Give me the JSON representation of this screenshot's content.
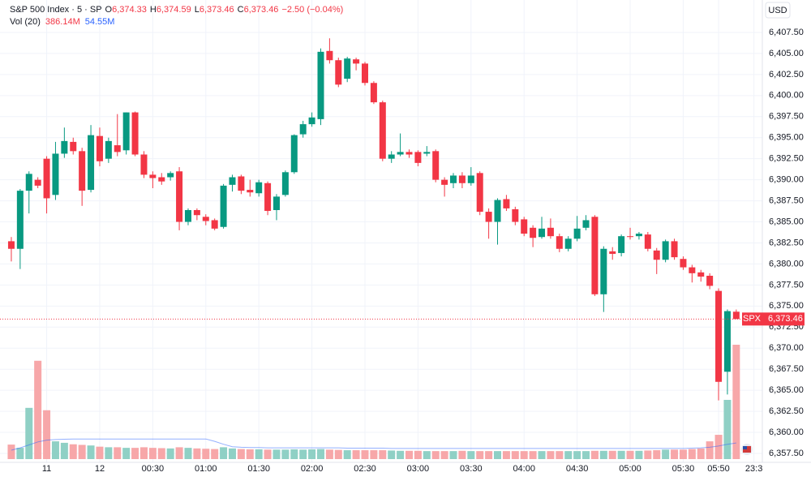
{
  "chart_data": {
    "type": "candlestick",
    "title": "S&P 500 Index · 5 · SP",
    "header": {
      "open_label": "O",
      "open": "6,374.33",
      "high_label": "H",
      "high": "6,374.59",
      "low_label": "L",
      "low": "6,373.46",
      "close_label": "C",
      "close": "6,373.46",
      "change": "−2.50 (−0.04%)",
      "volume_label": "Vol (20)",
      "volume": "386.14M",
      "volume_ma": "54.55M"
    },
    "currency": "USD",
    "last_price": {
      "symbol": "SPX",
      "label": "6,373.46"
    },
    "up_color": "#089981",
    "down_color": "#f23645",
    "volume_up_color": "#8fd0c5",
    "volume_down_color": "#f7a7a9",
    "volume_ma_color": "#2962ff",
    "grid": true,
    "xlim": [
      -1.28,
      84.95
    ],
    "xticks": [
      {
        "value": 4,
        "label": "11"
      },
      {
        "value": 10,
        "label": "12"
      },
      {
        "value": 16,
        "label": "00:30"
      },
      {
        "value": 22,
        "label": "01:00"
      },
      {
        "value": 28,
        "label": "01:30"
      },
      {
        "value": 34,
        "label": "02:00"
      },
      {
        "value": 40,
        "label": "02:30"
      },
      {
        "value": 46,
        "label": "03:00"
      },
      {
        "value": 52,
        "label": "03:30"
      },
      {
        "value": 58,
        "label": "04:00"
      },
      {
        "value": 64,
        "label": "04:30"
      },
      {
        "value": 70,
        "label": "05:00"
      },
      {
        "value": 76,
        "label": "05:30"
      },
      {
        "value": 80,
        "label": "05:50"
      },
      {
        "value": 84,
        "label": "23:3"
      }
    ],
    "ylim": [
      6356.44,
      6411.35
    ],
    "yticks": [
      {
        "value": 6357.5,
        "label": "6,357.50"
      },
      {
        "value": 6360,
        "label": "6,360.00"
      },
      {
        "value": 6362.5,
        "label": "6,362.50"
      },
      {
        "value": 6365,
        "label": "6,365.00"
      },
      {
        "value": 6367.5,
        "label": "6,367.50"
      },
      {
        "value": 6370,
        "label": "6,370.00"
      },
      {
        "value": 6372.5,
        "label": "6,372.50"
      },
      {
        "value": 6375,
        "label": "6,375.00"
      },
      {
        "value": 6377.5,
        "label": "6,377.50"
      },
      {
        "value": 6380,
        "label": "6,380.00"
      },
      {
        "value": 6382.5,
        "label": "6,382.50"
      },
      {
        "value": 6385,
        "label": "6,385.00"
      },
      {
        "value": 6387.5,
        "label": "6,387.50"
      },
      {
        "value": 6390,
        "label": "6,390.00"
      },
      {
        "value": 6392.5,
        "label": "6,392.50"
      },
      {
        "value": 6395,
        "label": "6,395.00"
      },
      {
        "value": 6397.5,
        "label": "6,397.50"
      },
      {
        "value": 6400,
        "label": "6,400.00"
      },
      {
        "value": 6402.5,
        "label": "6,402.50"
      },
      {
        "value": 6405,
        "label": "6,405.00"
      },
      {
        "value": 6407.5,
        "label": "6,407.50"
      }
    ],
    "open": [
      6382.7,
      6381.8,
      6388.7,
      6390.0,
      6392.5,
      6388.2,
      6393.1,
      6394.5,
      6393.4,
      6388.8,
      6395.2,
      6392.5,
      6394.1,
      6393.5,
      6398.0,
      6393.0,
      6390.6,
      6390.3,
      6390.3,
      6391.0,
      6385.0,
      6386.4,
      6385.6,
      6385.2,
      6384.4,
      6389.4,
      6390.4,
      6388.8,
      6388.4,
      6389.6,
      6386.4,
      6388.2,
      6390.9,
      6395.4,
      6396.6,
      6397.2,
      6405.3,
      6404.2,
      6402.0,
      6404.3,
      6403.8,
      6401.5,
      6399.2,
      6392.5,
      6393.0,
      6393.3,
      6393.3,
      6393.1,
      6393.4,
      6390.0,
      6389.6,
      6390.5,
      6389.6,
      6390.8,
      6386.2,
      6385.0,
      6387.7,
      6386.5,
      6385.3,
      6384.3,
      6383.2,
      6384.3,
      6383.3,
      6381.8,
      6383.0,
      6384.3,
      6385.6,
      6376.4,
      6381.5,
      6381.3,
      6383.3,
      6383.3,
      6383.5,
      6381.6,
      6380.5,
      6382.7,
      6380.6,
      6379.6,
      6379.0,
      6378.6,
      6376.8,
      6367.2,
      6374.33
    ],
    "high": [
      6383.2,
      6388.9,
      6391.0,
      6390.3,
      6392.8,
      6394.5,
      6396.2,
      6395.0,
      6393.8,
      6396.5,
      6396.2,
      6395.0,
      6397.8,
      6398.0,
      6398.1,
      6393.4,
      6391.0,
      6390.8,
      6391.0,
      6391.5,
      6386.6,
      6386.6,
      6385.9,
      6385.4,
      6389.5,
      6390.6,
      6390.6,
      6390.0,
      6390.0,
      6389.8,
      6388.3,
      6391.1,
      6395.4,
      6397.0,
      6398.0,
      6405.6,
      6406.8,
      6404.5,
      6404.6,
      6404.5,
      6404.0,
      6401.7,
      6399.4,
      6393.4,
      6395.5,
      6393.6,
      6393.5,
      6394.0,
      6393.6,
      6390.3,
      6390.8,
      6390.9,
      6391.5,
      6391.0,
      6386.6,
      6387.8,
      6388.2,
      6386.8,
      6385.6,
      6384.6,
      6385.6,
      6385.4,
      6383.6,
      6383.3,
      6385.7,
      6385.8,
      6385.8,
      6382.1,
      6382.0,
      6383.5,
      6384.3,
      6383.8,
      6383.8,
      6381.9,
      6382.9,
      6383.0,
      6380.9,
      6379.9,
      6379.3,
      6378.9,
      6377.1,
      6374.6,
      6374.59
    ],
    "low": [
      6380.3,
      6379.4,
      6386.0,
      6389.0,
      6386.0,
      6387.6,
      6392.6,
      6393.0,
      6386.9,
      6388.5,
      6391.6,
      6392.0,
      6392.8,
      6393.0,
      6392.8,
      6390.2,
      6389.0,
      6389.4,
      6389.9,
      6384.0,
      6384.6,
      6385.2,
      6384.6,
      6384.0,
      6384.2,
      6388.6,
      6388.3,
      6388.0,
      6388.0,
      6385.8,
      6385.2,
      6388.0,
      6390.7,
      6395.0,
      6396.3,
      6396.5,
      6403.8,
      6401.0,
      6401.6,
      6403.0,
      6401.2,
      6399.0,
      6392.2,
      6392.0,
      6392.8,
      6392.6,
      6391.6,
      6392.8,
      6389.7,
      6388.0,
      6389.0,
      6389.0,
      6389.3,
      6385.8,
      6383.0,
      6382.3,
      6386.3,
      6384.6,
      6383.3,
      6382.0,
      6383.0,
      6383.0,
      6381.4,
      6381.5,
      6382.7,
      6384.0,
      6376.2,
      6374.3,
      6380.5,
      6380.9,
      6382.9,
      6382.9,
      6381.5,
      6378.8,
      6380.2,
      6380.5,
      6379.3,
      6377.8,
      6377.9,
      6377.0,
      6363.8,
      6364.5,
      6373.46
    ],
    "close": [
      6381.8,
      6388.7,
      6390.7,
      6389.3,
      6387.8,
      6393.1,
      6394.6,
      6393.4,
      6388.7,
      6395.3,
      6392.2,
      6394.6,
      6393.3,
      6398.0,
      6393.0,
      6390.6,
      6390.2,
      6389.8,
      6390.8,
      6385.0,
      6386.4,
      6385.8,
      6385.1,
      6384.2,
      6389.3,
      6390.3,
      6388.7,
      6388.5,
      6389.7,
      6386.3,
      6388.0,
      6390.9,
      6395.3,
      6396.6,
      6397.4,
      6405.2,
      6404.2,
      6401.3,
      6404.4,
      6403.8,
      6401.5,
      6399.2,
      6392.5,
      6393.0,
      6393.3,
      6393.0,
      6392.0,
      6393.3,
      6390.0,
      6389.4,
      6390.5,
      6389.6,
      6390.5,
      6386.2,
      6385.0,
      6387.6,
      6386.6,
      6385.0,
      6383.6,
      6383.1,
      6384.2,
      6383.3,
      6381.8,
      6383.0,
      6384.2,
      6385.2,
      6376.4,
      6381.8,
      6381.2,
      6383.3,
      6383.2,
      6383.6,
      6381.8,
      6380.5,
      6382.7,
      6380.8,
      6379.6,
      6378.9,
      6378.5,
      6377.4,
      6366.0,
      6374.4,
      6373.46
    ],
    "volume": [
      49,
      38,
      173,
      332,
      165,
      60,
      55,
      50,
      48,
      46,
      42,
      40,
      40,
      38,
      38,
      40,
      38,
      37,
      36,
      40,
      38,
      36,
      35,
      34,
      40,
      36,
      34,
      33,
      33,
      32,
      32,
      32,
      33,
      32,
      33,
      34,
      32,
      31,
      30,
      30,
      30,
      30,
      30,
      29,
      28,
      28,
      28,
      27,
      27,
      27,
      27,
      28,
      27,
      27,
      27,
      27,
      27,
      27,
      27,
      27,
      27,
      27,
      27,
      27,
      27,
      27,
      28,
      28,
      28,
      28,
      28,
      28,
      29,
      30,
      32,
      32,
      32,
      34,
      36,
      60,
      82,
      200,
      386.14
    ],
    "volume_ma": [
      30,
      38,
      48,
      58,
      64,
      66,
      67,
      68,
      68,
      68,
      68,
      68,
      68,
      68,
      68,
      68,
      68,
      68,
      68,
      68,
      68,
      68,
      68,
      60,
      50,
      42,
      40,
      39,
      39,
      38,
      38,
      38,
      38,
      38,
      38,
      38,
      38,
      38,
      37,
      37,
      37,
      37,
      37,
      36,
      36,
      36,
      36,
      36,
      36,
      36,
      36,
      36,
      36,
      36,
      36,
      36,
      36,
      36,
      36,
      36,
      36,
      36,
      36,
      36,
      36,
      36,
      36,
      36,
      36,
      36,
      36,
      36,
      36,
      36,
      36,
      36,
      36,
      37,
      38,
      40,
      44,
      50,
      54.55
    ]
  }
}
